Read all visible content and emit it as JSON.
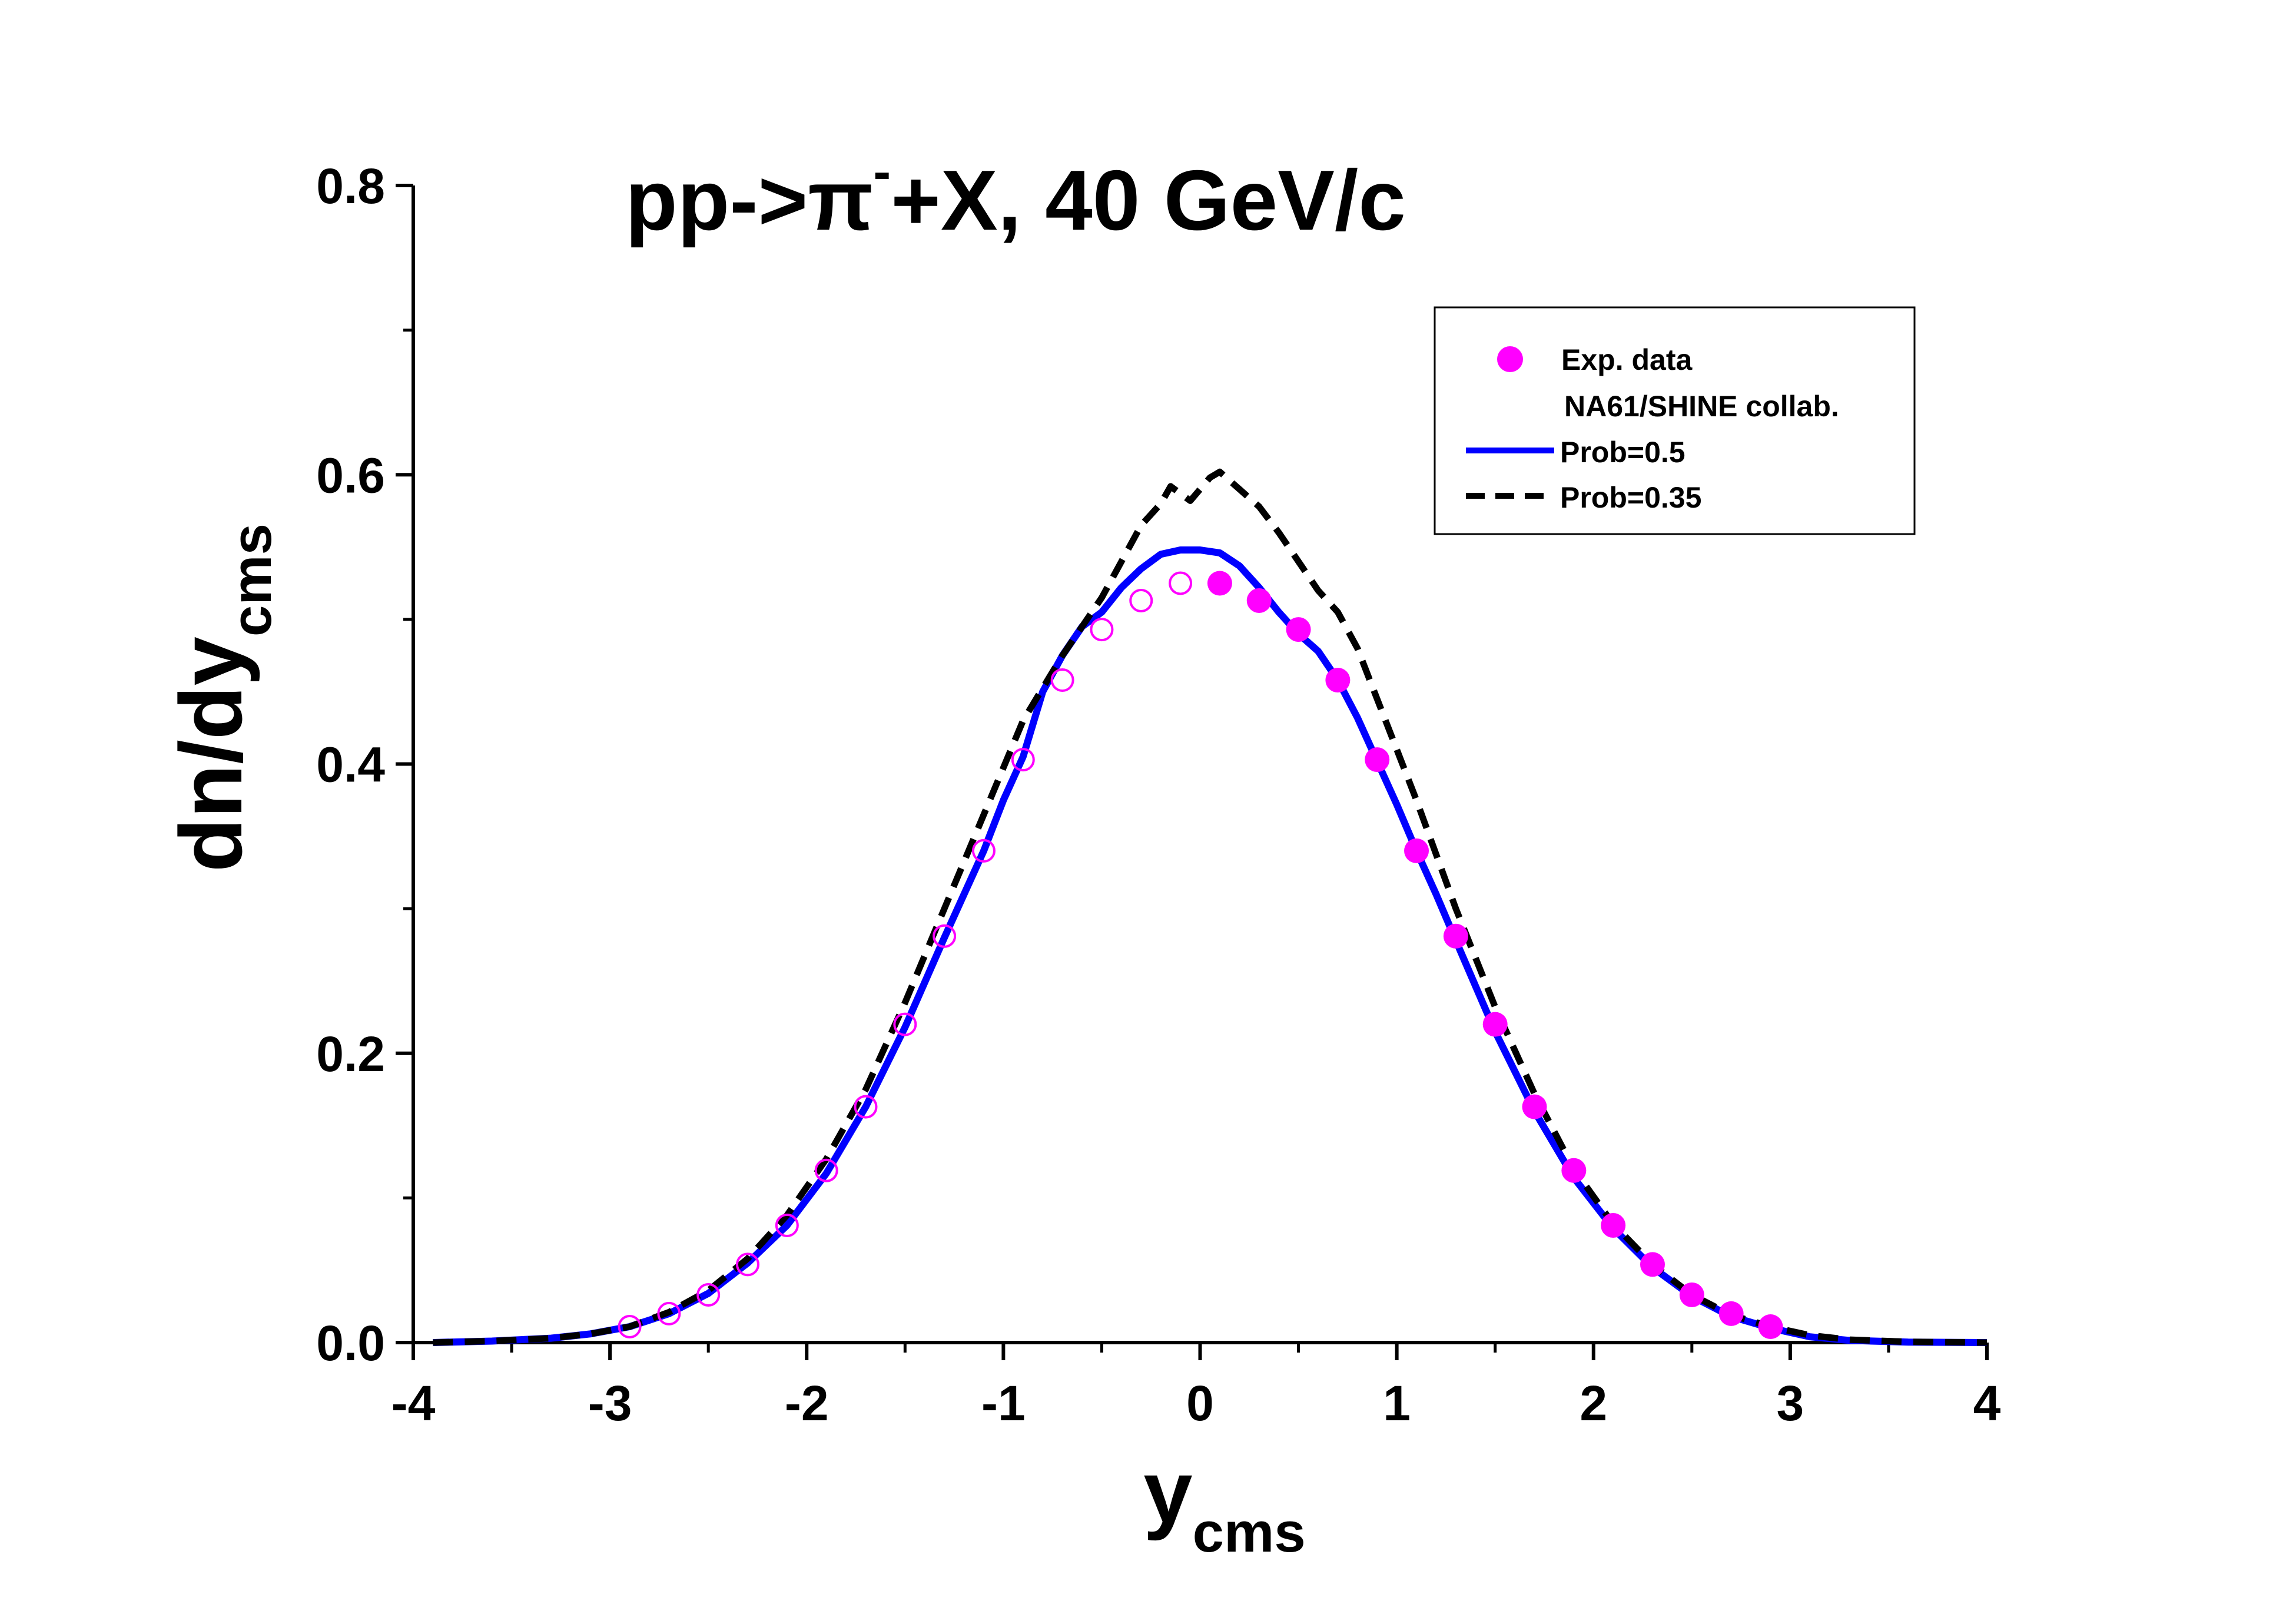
{
  "chart_data": {
    "type": "scatter",
    "title": {
      "main": "pp->π",
      "superscript": "-",
      "rest": "+X, 40 GeV/c"
    },
    "xlabel": {
      "main": "y",
      "subscript": "cms"
    },
    "ylabel": {
      "main": "dn/dy",
      "subscript": "cms"
    },
    "xlim": [
      -4,
      4
    ],
    "ylim": [
      0,
      0.8
    ],
    "x_ticks": [
      -4,
      -3,
      -2,
      -1,
      0,
      1,
      2,
      3,
      4
    ],
    "x_tick_labels": [
      "-4",
      "-3",
      "-2",
      "-1",
      "0",
      "1",
      "2",
      "3",
      "4"
    ],
    "y_ticks": [
      0.0,
      0.2,
      0.4,
      0.6,
      0.8
    ],
    "y_tick_labels": [
      "0.0",
      "0.2",
      "0.4",
      "0.6",
      "0.8"
    ],
    "grid": false,
    "legend_position": "top-right",
    "legend": {
      "exp_label": "Exp. data",
      "exp_sublabel": "NA61/SHINE collab.",
      "prob05_label": "Prob=0.5",
      "prob035_label": "Prob=0.35"
    },
    "colors": {
      "exp": "#ff00ff",
      "prob05": "#0000ff",
      "prob035": "#000000"
    },
    "series": [
      {
        "name": "Exp. data",
        "style": "filled-markers",
        "x": [
          0.1,
          0.3,
          0.5,
          0.7,
          0.9,
          1.1,
          1.3,
          1.5,
          1.7,
          1.9,
          2.1,
          2.3,
          2.5,
          2.7,
          2.9
        ],
        "y": [
          0.525,
          0.513,
          0.493,
          0.458,
          0.403,
          0.34,
          0.281,
          0.22,
          0.163,
          0.119,
          0.081,
          0.054,
          0.033,
          0.02,
          0.011
        ]
      },
      {
        "name": "Exp. data (reflected)",
        "style": "open-markers",
        "x": [
          -0.1,
          -0.3,
          -0.5,
          -0.7,
          -0.9,
          -1.1,
          -1.3,
          -1.5,
          -1.7,
          -1.9,
          -2.1,
          -2.3,
          -2.5,
          -2.7,
          -2.9
        ],
        "y": [
          0.525,
          0.513,
          0.493,
          0.458,
          0.403,
          0.34,
          0.281,
          0.22,
          0.163,
          0.119,
          0.081,
          0.054,
          0.033,
          0.02,
          0.011
        ]
      },
      {
        "name": "Prob=0.5",
        "style": "solid-line",
        "x": [
          -3.9,
          -3.6,
          -3.3,
          -3.1,
          -2.9,
          -2.7,
          -2.5,
          -2.3,
          -2.1,
          -1.9,
          -1.7,
          -1.5,
          -1.3,
          -1.1,
          -1.0,
          -0.9,
          -0.8,
          -0.7,
          -0.6,
          -0.5,
          -0.4,
          -0.3,
          -0.2,
          -0.1,
          0.0,
          0.1,
          0.2,
          0.3,
          0.4,
          0.5,
          0.6,
          0.7,
          0.8,
          0.9,
          1.0,
          1.1,
          1.2,
          1.3,
          1.5,
          1.7,
          1.9,
          2.1,
          2.3,
          2.5,
          2.7,
          2.9,
          3.1,
          3.3,
          3.6,
          4.0
        ],
        "y": [
          0.0,
          0.001,
          0.003,
          0.006,
          0.011,
          0.02,
          0.034,
          0.055,
          0.081,
          0.117,
          0.163,
          0.218,
          0.28,
          0.34,
          0.375,
          0.405,
          0.45,
          0.475,
          0.495,
          0.505,
          0.522,
          0.535,
          0.545,
          0.548,
          0.548,
          0.546,
          0.537,
          0.522,
          0.505,
          0.49,
          0.478,
          0.458,
          0.432,
          0.402,
          0.372,
          0.34,
          0.31,
          0.278,
          0.215,
          0.16,
          0.114,
          0.079,
          0.052,
          0.032,
          0.018,
          0.01,
          0.004,
          0.0015,
          0.0003,
          0.0
        ]
      },
      {
        "name": "Prob=0.35",
        "style": "dashed-line",
        "x": [
          -3.9,
          -3.6,
          -3.3,
          -3.1,
          -2.9,
          -2.7,
          -2.5,
          -2.3,
          -2.1,
          -1.9,
          -1.7,
          -1.5,
          -1.3,
          -1.1,
          -0.9,
          -0.7,
          -0.5,
          -0.4,
          -0.3,
          -0.2,
          -0.15,
          -0.05,
          0.05,
          0.1,
          0.2,
          0.3,
          0.4,
          0.5,
          0.6,
          0.7,
          0.8,
          0.9,
          1.1,
          1.3,
          1.5,
          1.7,
          1.9,
          2.1,
          2.3,
          2.5,
          2.7,
          2.9,
          3.1,
          3.3,
          3.6,
          4.0
        ],
        "y": [
          0.0,
          0.001,
          0.003,
          0.006,
          0.011,
          0.021,
          0.036,
          0.058,
          0.088,
          0.127,
          0.175,
          0.235,
          0.3,
          0.365,
          0.43,
          0.475,
          0.515,
          0.54,
          0.565,
          0.58,
          0.592,
          0.582,
          0.598,
          0.602,
          0.59,
          0.578,
          0.56,
          0.54,
          0.52,
          0.505,
          0.48,
          0.445,
          0.375,
          0.3,
          0.232,
          0.172,
          0.12,
          0.082,
          0.054,
          0.033,
          0.019,
          0.011,
          0.005,
          0.002,
          0.0005,
          0.0
        ]
      }
    ]
  }
}
